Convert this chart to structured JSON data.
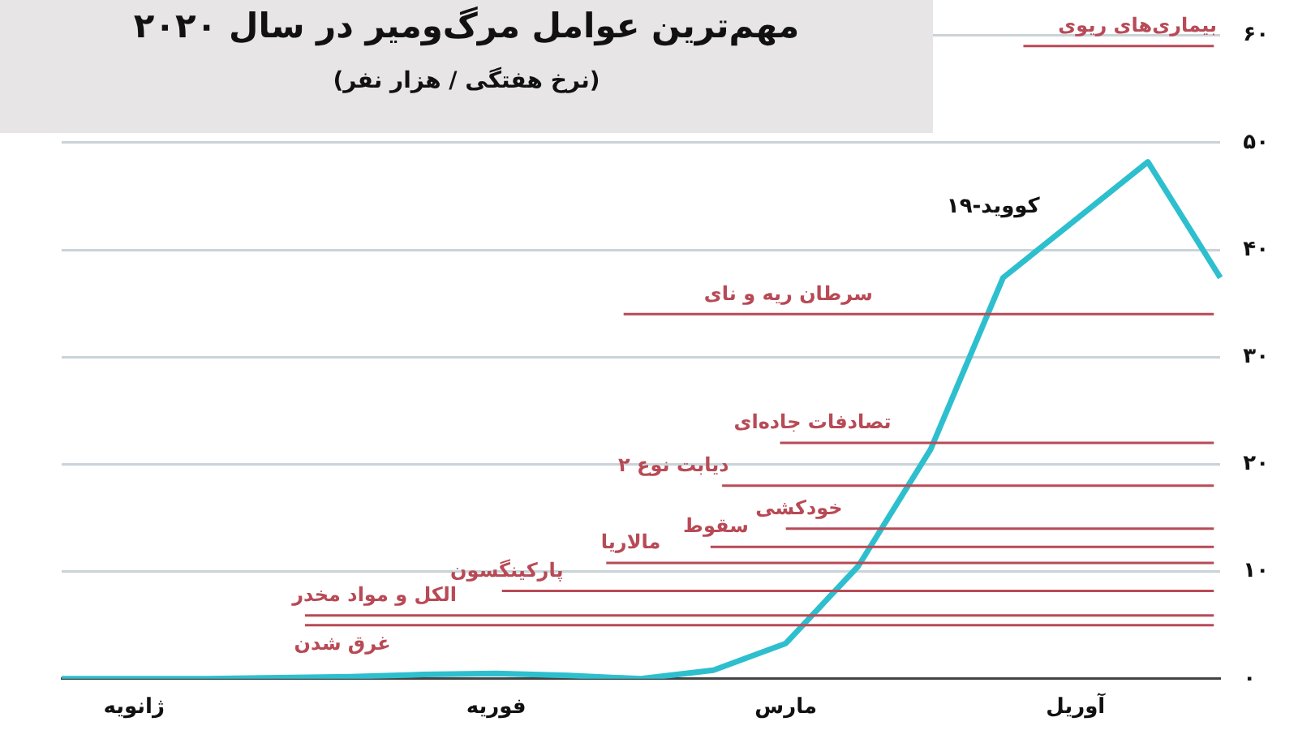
{
  "chart_data": {
    "type": "line",
    "title": "مهم‌ترین عوامل مرگ‌ومیر در سال ۲۰۲۰",
    "subtitle": "(نرخ هفتگی / هزار نفر)",
    "categories": [
      null,
      "ژانویه",
      null,
      null,
      null,
      null,
      "فوریه",
      null,
      null,
      null,
      "مارس",
      null,
      null,
      null,
      "آوریل",
      null,
      null
    ],
    "series": [
      {
        "name": "کووید-۱۹",
        "color": "#2ebfcf",
        "values": [
          0,
          0,
          0,
          0.1,
          0.2,
          0.4,
          0.5,
          0.3,
          0,
          0.8,
          3.3,
          10.5,
          21.4,
          37.4,
          42.8,
          48.2,
          37.4
        ]
      }
    ],
    "ylim": [
      0,
      60
    ],
    "yticks": [
      {
        "value": 0,
        "label": "۰"
      },
      {
        "value": 10,
        "label": "۱۰"
      },
      {
        "value": 20,
        "label": "۲۰"
      },
      {
        "value": 30,
        "label": "۳۰"
      },
      {
        "value": 40,
        "label": "۴۰"
      },
      {
        "value": 50,
        "label": "۵۰"
      },
      {
        "value": 60,
        "label": "۶۰"
      }
    ],
    "ref_lines": [
      {
        "axis": "y",
        "value": 59,
        "label": "بیماری‌های ریوی",
        "color": "#b84a56"
      },
      {
        "axis": "y",
        "value": 34,
        "label": "سرطان ریه و نای",
        "color": "#b84a56"
      },
      {
        "axis": "y",
        "value": 22,
        "label": "تصادفات جاده‌ای",
        "color": "#b84a56"
      },
      {
        "axis": "y",
        "value": 18,
        "label": "دیابت نوع ۲",
        "color": "#b84a56"
      },
      {
        "axis": "y",
        "value": 14,
        "label": "خودکشی",
        "color": "#b84a56"
      },
      {
        "axis": "y",
        "value": 12.3,
        "label": "سقوط",
        "color": "#b84a56"
      },
      {
        "axis": "y",
        "value": 10.8,
        "label": "مالاریا",
        "color": "#b84a56"
      },
      {
        "axis": "y",
        "value": 8.2,
        "label": "پارکینگسون",
        "color": "#b84a56"
      },
      {
        "axis": "y",
        "value": 5.9,
        "label": "الکل و مواد مخدر",
        "color": "#b84a56"
      },
      {
        "axis": "y",
        "value": 5,
        "label": "غرق شدن",
        "color": "#b84a56"
      }
    ],
    "grid": "y",
    "legend": false,
    "marker": "none",
    "line_style": "solid"
  }
}
